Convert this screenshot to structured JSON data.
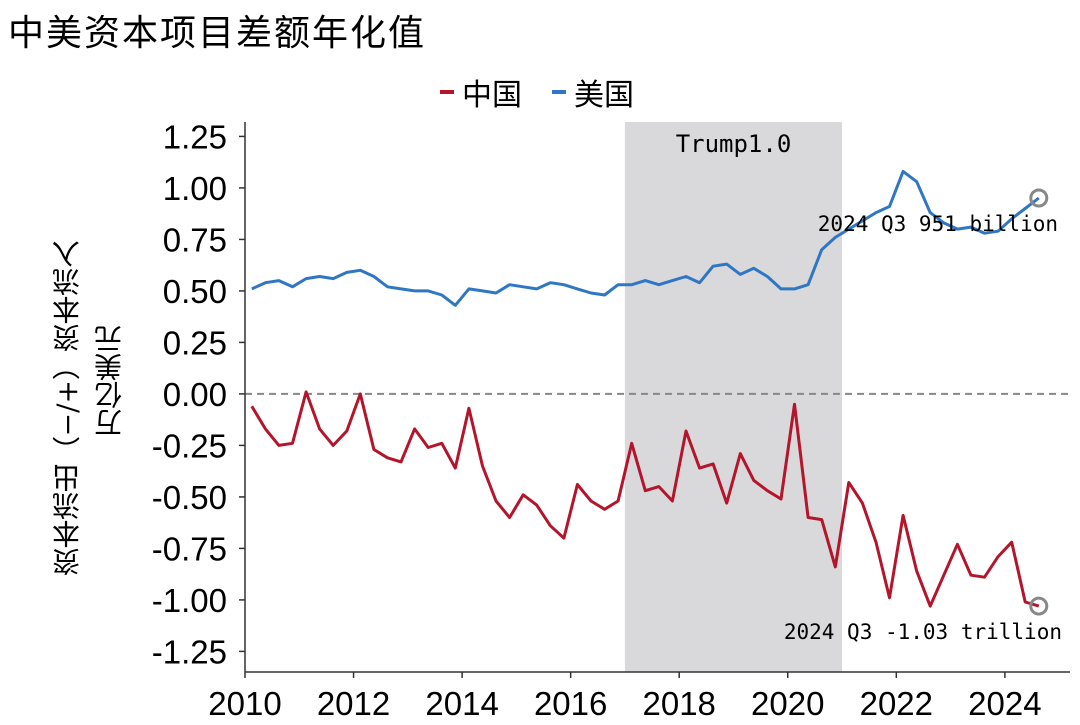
{
  "chart_data": {
    "type": "line",
    "title": "中美资本项目差额年化值",
    "ylabel_line1": "资本流出（−/+）资本流入",
    "ylabel_line2": "万亿美元",
    "xlabel": "",
    "ylim": [
      -1.35,
      1.32
    ],
    "xlim": [
      2010.0,
      2025.2
    ],
    "yticks": [
      "1.25",
      "1.00",
      "0.75",
      "0.50",
      "0.25",
      "0.00",
      "-0.25",
      "-0.50",
      "-0.75",
      "-1.00",
      "-1.25"
    ],
    "ytick_values": [
      1.25,
      1.0,
      0.75,
      0.5,
      0.25,
      0.0,
      -0.25,
      -0.5,
      -0.75,
      -1.0,
      -1.25
    ],
    "xticks": [
      "2010",
      "2012",
      "2014",
      "2016",
      "2018",
      "2020",
      "2022",
      "2024"
    ],
    "xtick_values": [
      2010,
      2012,
      2014,
      2016,
      2018,
      2020,
      2022,
      2024
    ],
    "shaded_region": {
      "label": "Trump1.0",
      "from": 2017.0,
      "to": 2021.0
    },
    "zero_line": {
      "style": "dashed",
      "color": "#888888"
    },
    "legend": [
      {
        "name": "中国",
        "color": "#b5152b"
      },
      {
        "name": "美国",
        "color": "#2f76c4"
      }
    ],
    "series": [
      {
        "name": "美国",
        "color": "#2f76c4",
        "x": [
          2010.125,
          2010.375,
          2010.625,
          2010.875,
          2011.125,
          2011.375,
          2011.625,
          2011.875,
          2012.125,
          2012.375,
          2012.625,
          2012.875,
          2013.125,
          2013.375,
          2013.625,
          2013.875,
          2014.125,
          2014.375,
          2014.625,
          2014.875,
          2015.125,
          2015.375,
          2015.625,
          2015.875,
          2016.125,
          2016.375,
          2016.625,
          2016.875,
          2017.125,
          2017.375,
          2017.625,
          2017.875,
          2018.125,
          2018.375,
          2018.625,
          2018.875,
          2019.125,
          2019.375,
          2019.625,
          2019.875,
          2020.125,
          2020.375,
          2020.625,
          2020.875,
          2021.125,
          2021.375,
          2021.625,
          2021.875,
          2022.125,
          2022.375,
          2022.625,
          2022.875,
          2023.125,
          2023.375,
          2023.625,
          2023.875,
          2024.125,
          2024.375,
          2024.625
        ],
        "values": [
          0.51,
          0.54,
          0.55,
          0.52,
          0.56,
          0.57,
          0.56,
          0.59,
          0.6,
          0.57,
          0.52,
          0.51,
          0.5,
          0.5,
          0.48,
          0.43,
          0.51,
          0.5,
          0.49,
          0.53,
          0.52,
          0.51,
          0.54,
          0.53,
          0.51,
          0.49,
          0.48,
          0.53,
          0.53,
          0.55,
          0.53,
          0.55,
          0.57,
          0.54,
          0.62,
          0.63,
          0.58,
          0.61,
          0.57,
          0.51,
          0.51,
          0.53,
          0.7,
          0.76,
          0.8,
          0.84,
          0.88,
          0.91,
          1.08,
          1.03,
          0.88,
          0.83,
          0.8,
          0.81,
          0.78,
          0.79,
          0.85,
          0.9,
          0.951
        ]
      },
      {
        "name": "中国",
        "color": "#b5152b",
        "x": [
          2010.125,
          2010.375,
          2010.625,
          2010.875,
          2011.125,
          2011.375,
          2011.625,
          2011.875,
          2012.125,
          2012.375,
          2012.625,
          2012.875,
          2013.125,
          2013.375,
          2013.625,
          2013.875,
          2014.125,
          2014.375,
          2014.625,
          2014.875,
          2015.125,
          2015.375,
          2015.625,
          2015.875,
          2016.125,
          2016.375,
          2016.625,
          2016.875,
          2017.125,
          2017.375,
          2017.625,
          2017.875,
          2018.125,
          2018.375,
          2018.625,
          2018.875,
          2019.125,
          2019.375,
          2019.625,
          2019.875,
          2020.125,
          2020.375,
          2020.625,
          2020.875,
          2021.125,
          2021.375,
          2021.625,
          2021.875,
          2022.125,
          2022.375,
          2022.625,
          2022.875,
          2023.125,
          2023.375,
          2023.625,
          2023.875,
          2024.125,
          2024.375,
          2024.625
        ],
        "values": [
          -0.06,
          -0.17,
          -0.25,
          -0.24,
          0.01,
          -0.17,
          -0.25,
          -0.18,
          0.0,
          -0.27,
          -0.31,
          -0.33,
          -0.17,
          -0.26,
          -0.24,
          -0.36,
          -0.07,
          -0.35,
          -0.52,
          -0.6,
          -0.49,
          -0.54,
          -0.64,
          -0.7,
          -0.44,
          -0.52,
          -0.56,
          -0.52,
          -0.24,
          -0.47,
          -0.45,
          -0.52,
          -0.18,
          -0.36,
          -0.34,
          -0.53,
          -0.29,
          -0.42,
          -0.47,
          -0.51,
          -0.05,
          -0.6,
          -0.61,
          -0.84,
          -0.43,
          -0.53,
          -0.72,
          -0.99,
          -0.59,
          -0.86,
          -1.03,
          -0.88,
          -0.73,
          -0.88,
          -0.89,
          -0.79,
          -0.72,
          -1.01,
          -1.03
        ]
      }
    ],
    "annotations": [
      {
        "series": "美国",
        "x": 2024.625,
        "y": 0.951,
        "text": "2024 Q3 951 billion"
      },
      {
        "series": "中国",
        "x": 2024.625,
        "y": -1.03,
        "text": "2024 Q3 -1.03 trillion"
      }
    ]
  }
}
